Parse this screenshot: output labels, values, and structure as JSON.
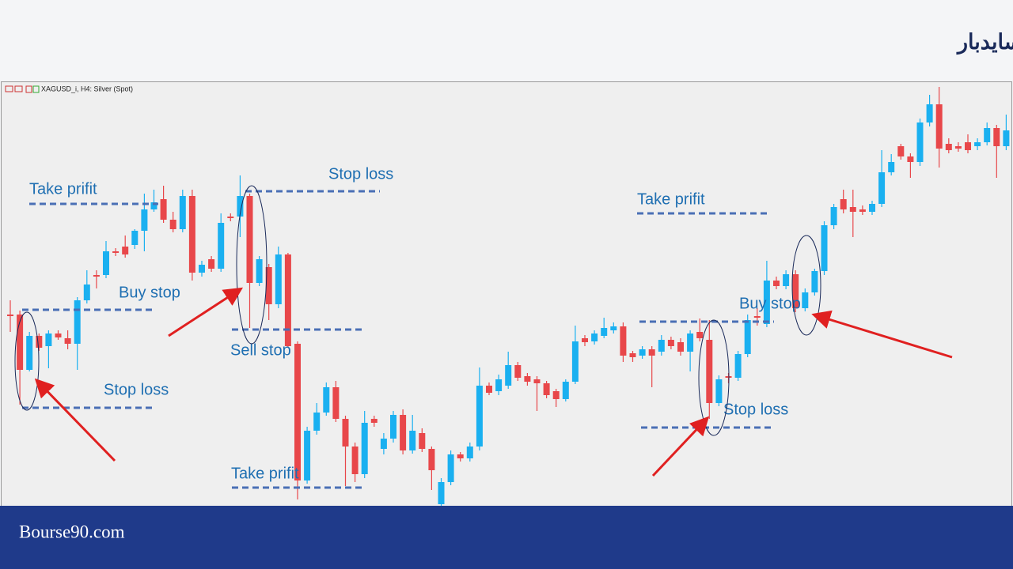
{
  "title": "استراتژی معاملاتی با الگوی کندلی اینسایدبار",
  "footer": "Bourse90.com",
  "annotations": [
    "Take prifit",
    "Buy stop",
    "Stop loss",
    "Stop loss",
    "Sell stop",
    "Take prifit",
    "Take prifit",
    "Buy stop",
    "Stop loss"
  ],
  "chart_data": {
    "type": "candlestick",
    "symbol": "XAGUSD_i, H4:  Silver (Spot)",
    "up_color": "#1ab0f0",
    "down_color": "#e8474a",
    "ylim": [
      80,
      615
    ],
    "candles": [
      [
        322,
        340,
        300,
        320
      ],
      [
        322,
        327,
        208,
        252
      ],
      [
        252,
        300,
        250,
        295
      ],
      [
        295,
        298,
        276,
        280
      ],
      [
        282,
        302,
        254,
        298
      ],
      [
        298,
        302,
        290,
        293
      ],
      [
        292,
        302,
        278,
        285
      ],
      [
        285,
        344,
        252,
        340
      ],
      [
        340,
        378,
        336,
        360
      ],
      [
        372,
        378,
        355,
        370
      ],
      [
        372,
        415,
        368,
        402
      ],
      [
        402,
        406,
        396,
        400
      ],
      [
        408,
        422,
        394,
        398
      ],
      [
        410,
        430,
        405,
        428
      ],
      [
        428,
        475,
        402,
        455
      ],
      [
        455,
        480,
        452,
        464
      ],
      [
        468,
        485,
        438,
        442
      ],
      [
        442,
        452,
        426,
        430
      ],
      [
        430,
        480,
        426,
        472
      ],
      [
        472,
        480,
        365,
        375
      ],
      [
        375,
        390,
        370,
        385
      ],
      [
        392,
        396,
        376,
        380
      ],
      [
        380,
        450,
        376,
        438
      ],
      [
        446,
        450,
        440,
        444
      ],
      [
        446,
        498,
        420,
        472
      ],
      [
        472,
        475,
        305,
        362
      ],
      [
        362,
        396,
        358,
        392
      ],
      [
        382,
        386,
        315,
        335
      ],
      [
        335,
        408,
        330,
        398
      ],
      [
        398,
        400,
        280,
        282
      ],
      [
        285,
        288,
        88,
        112
      ],
      [
        112,
        180,
        108,
        175
      ],
      [
        175,
        210,
        170,
        198
      ],
      [
        198,
        236,
        194,
        230
      ],
      [
        230,
        238,
        186,
        190
      ],
      [
        190,
        194,
        105,
        155
      ],
      [
        155,
        160,
        110,
        120
      ],
      [
        120,
        200,
        115,
        185
      ],
      [
        190,
        194,
        180,
        185
      ],
      [
        152,
        172,
        145,
        165
      ],
      [
        165,
        200,
        160,
        195
      ],
      [
        195,
        202,
        145,
        150
      ],
      [
        150,
        195,
        146,
        175
      ],
      [
        172,
        178,
        148,
        152
      ],
      [
        152,
        155,
        100,
        125
      ],
      [
        82,
        115,
        80,
        110
      ],
      [
        110,
        150,
        106,
        145
      ],
      [
        145,
        148,
        136,
        140
      ],
      [
        140,
        160,
        136,
        155
      ],
      [
        155,
        255,
        150,
        232
      ],
      [
        232,
        236,
        220,
        223
      ],
      [
        225,
        246,
        220,
        240
      ],
      [
        232,
        275,
        228,
        258
      ],
      [
        258,
        262,
        238,
        242
      ],
      [
        244,
        248,
        232,
        237
      ],
      [
        240,
        244,
        200,
        235
      ],
      [
        235,
        238,
        216,
        220
      ],
      [
        225,
        228,
        205,
        215
      ],
      [
        215,
        240,
        212,
        237
      ],
      [
        237,
        308,
        234,
        288
      ],
      [
        292,
        296,
        282,
        287
      ],
      [
        288,
        302,
        284,
        298
      ],
      [
        295,
        318,
        292,
        305
      ],
      [
        302,
        312,
        298,
        307
      ],
      [
        307,
        312,
        262,
        270
      ],
      [
        273,
        276,
        262,
        268
      ],
      [
        270,
        282,
        266,
        278
      ],
      [
        278,
        282,
        230,
        270
      ],
      [
        275,
        296,
        270,
        290
      ],
      [
        290,
        294,
        278,
        282
      ],
      [
        287,
        292,
        270,
        275
      ],
      [
        275,
        302,
        250,
        298
      ],
      [
        300,
        317,
        288,
        292
      ],
      [
        290,
        315,
        190,
        210
      ],
      [
        210,
        245,
        206,
        240
      ],
      [
        244,
        248,
        235,
        242
      ],
      [
        242,
        276,
        238,
        272
      ],
      [
        272,
        322,
        268,
        315
      ],
      [
        320,
        330,
        308,
        318
      ],
      [
        310,
        390,
        306,
        365
      ],
      [
        365,
        370,
        354,
        358
      ],
      [
        358,
        378,
        354,
        373
      ],
      [
        373,
        378,
        325,
        330
      ],
      [
        330,
        355,
        326,
        350
      ],
      [
        350,
        380,
        346,
        377
      ],
      [
        377,
        440,
        372,
        435
      ],
      [
        435,
        462,
        430,
        458
      ],
      [
        468,
        480,
        450,
        455
      ],
      [
        458,
        480,
        420,
        452
      ],
      [
        455,
        460,
        448,
        452
      ],
      [
        452,
        466,
        448,
        462
      ],
      [
        462,
        530,
        458,
        502
      ],
      [
        502,
        525,
        498,
        515
      ],
      [
        535,
        538,
        518,
        522
      ],
      [
        522,
        526,
        495,
        515
      ],
      [
        515,
        570,
        510,
        565
      ],
      [
        565,
        600,
        560,
        588
      ],
      [
        588,
        610,
        508,
        532
      ],
      [
        538,
        545,
        526,
        530
      ],
      [
        535,
        540,
        528,
        532
      ],
      [
        540,
        550,
        526,
        530
      ],
      [
        535,
        545,
        530,
        540
      ],
      [
        540,
        565,
        536,
        558
      ],
      [
        558,
        562,
        495,
        535
      ],
      [
        535,
        575,
        530,
        555
      ]
    ]
  }
}
